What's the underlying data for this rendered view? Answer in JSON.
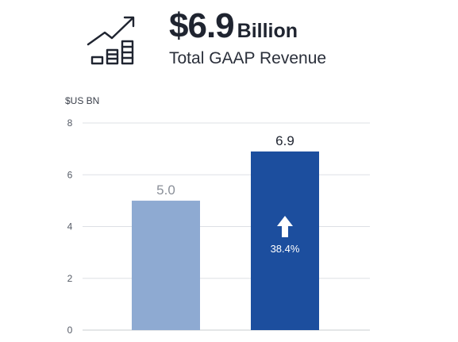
{
  "header": {
    "icon": "rising-bar-chart-icon",
    "headline_value": "$6.9",
    "headline_unit": "Billion",
    "subtitle": "Total GAAP Revenue"
  },
  "chart_data": {
    "type": "bar",
    "title": "",
    "ylabel": "$US BN",
    "xlabel": "",
    "categories": [
      "",
      ""
    ],
    "values": [
      5.0,
      6.9
    ],
    "value_labels": [
      "5.0",
      "6.9"
    ],
    "ylim": [
      0,
      8
    ],
    "yticks": [
      0,
      2,
      4,
      6,
      8
    ],
    "grid": true,
    "annotation": {
      "bar_index": 1,
      "icon": "up-arrow-icon",
      "text": "38.4%"
    },
    "colors": {
      "bars": [
        "#8eaad2",
        "#1c4e9e"
      ],
      "value_labels": [
        "#8a8f98",
        "#1f2430"
      ]
    }
  }
}
